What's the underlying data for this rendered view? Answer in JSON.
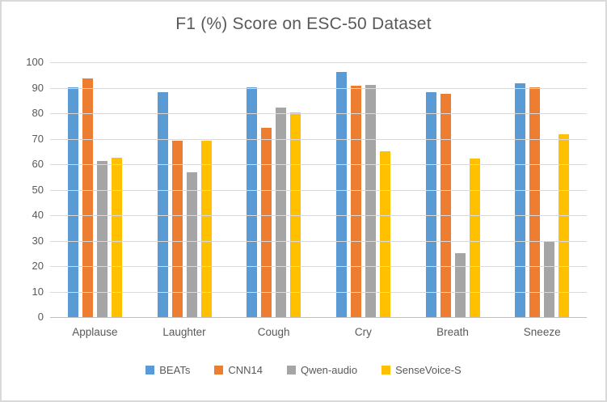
{
  "chart_data": {
    "type": "bar",
    "title": "F1 (%) Score on ESC-50 Dataset",
    "categories": [
      "Applause",
      "Laughter",
      "Cough",
      "Cry",
      "Breath",
      "Sneeze"
    ],
    "series": [
      {
        "name": "BEATs",
        "color": "#5B9BD5",
        "values": [
          90.5,
          88.5,
          90.5,
          96.5,
          88.5,
          92.0
        ]
      },
      {
        "name": "CNN14",
        "color": "#ED7D31",
        "values": [
          94.0,
          69.5,
          74.5,
          91.0,
          88.0,
          90.5
        ]
      },
      {
        "name": "Qwen-audio",
        "color": "#A5A5A5",
        "values": [
          61.5,
          57.0,
          82.5,
          91.5,
          25.5,
          30.0
        ]
      },
      {
        "name": "SenseVoice-S",
        "color": "#FFC000",
        "values": [
          63.0,
          69.5,
          80.5,
          65.5,
          62.5,
          72.0
        ]
      }
    ],
    "xlabel": "",
    "ylabel": "",
    "ylim": [
      0,
      100
    ],
    "yticks": [
      0,
      10,
      20,
      30,
      40,
      50,
      60,
      70,
      80,
      90,
      100
    ],
    "grid": true,
    "legend_position": "bottom",
    "colors": {
      "text": "#595959",
      "gridline": "#D9D9D9",
      "axis_line": "#BFBFBF",
      "frame_border": "#D9D9D9",
      "background": "#FFFFFF"
    }
  }
}
